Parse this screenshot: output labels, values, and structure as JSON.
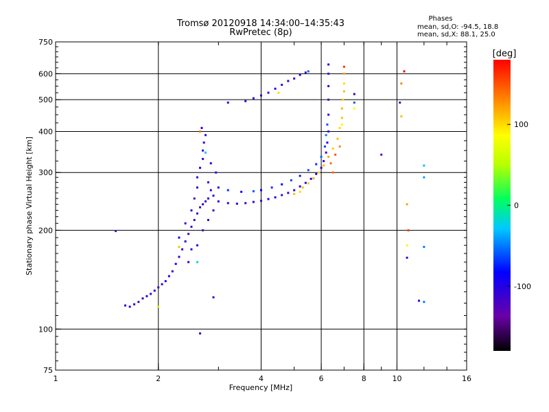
{
  "chart_data": {
    "type": "scatter",
    "title": "Tromsø 20120918 14:34:00–14:35:43",
    "subtitle": "RwPretec (8p)",
    "stats": {
      "heading": "Phases",
      "line_o": "mean, sd,O: -94.5, 18.8",
      "line_x": "mean, sd,X:  88.1, 25.0"
    },
    "xlabel": "Frequency [MHz]",
    "ylabel": "Stationary phase Virtual Height [km]",
    "x_scale": "log",
    "y_scale": "log",
    "xlim": [
      1,
      16
    ],
    "ylim": [
      75,
      750
    ],
    "x_ticks": [
      1,
      2,
      4,
      6,
      8,
      10,
      16
    ],
    "x_tick_labels": [
      "1",
      "2",
      "4",
      "6",
      "8",
      "10",
      "16"
    ],
    "y_ticks": [
      75,
      100,
      200,
      300,
      400,
      500,
      600,
      750
    ],
    "y_tick_labels": [
      "75",
      "100",
      "200",
      "300",
      "400",
      "500",
      "600",
      "750"
    ],
    "grid_x": [
      2,
      4,
      6,
      8,
      10
    ],
    "grid_y": [
      100,
      200,
      300,
      400,
      500,
      600
    ],
    "grid": true,
    "colorbar": {
      "label": "[deg]",
      "range": [
        -180,
        180
      ],
      "ticks": [
        100,
        0,
        -100
      ],
      "tick_labels": [
        "100",
        "0",
        "-100"
      ],
      "colormap": "rainbow"
    },
    "series": [
      {
        "points": [
          [
            1.6,
            118,
            -105
          ],
          [
            1.65,
            117,
            -110
          ],
          [
            1.7,
            119,
            -100
          ],
          [
            1.75,
            121,
            -115
          ],
          [
            1.8,
            124,
            -108
          ],
          [
            1.85,
            126,
            -102
          ],
          [
            1.9,
            128,
            -112
          ],
          [
            1.95,
            131,
            -106
          ],
          [
            2.0,
            134,
            -118
          ],
          [
            2.05,
            137,
            -100
          ],
          [
            2.1,
            140,
            -110
          ],
          [
            2.15,
            145,
            -104
          ],
          [
            2.2,
            150,
            -112
          ],
          [
            2.25,
            158,
            -106
          ],
          [
            2.3,
            166,
            -114
          ],
          [
            2.35,
            175,
            -100
          ],
          [
            2.4,
            185,
            -110
          ],
          [
            2.45,
            195,
            -116
          ],
          [
            2.5,
            205,
            -104
          ],
          [
            2.55,
            215,
            -112
          ],
          [
            2.6,
            225,
            -106
          ],
          [
            2.65,
            235,
            -118
          ],
          [
            2.7,
            240,
            -100
          ],
          [
            2.75,
            245,
            -110
          ],
          [
            2.8,
            250,
            -104
          ],
          [
            2.3,
            190,
            -95
          ],
          [
            2.4,
            210,
            -120
          ],
          [
            2.5,
            230,
            -98
          ],
          [
            2.55,
            250,
            -115
          ],
          [
            2.6,
            270,
            -102
          ],
          [
            2.6,
            290,
            -110
          ],
          [
            2.65,
            310,
            -96
          ],
          [
            2.7,
            330,
            -112
          ],
          [
            2.7,
            350,
            -104
          ],
          [
            2.72,
            370,
            -100
          ],
          [
            2.75,
            390,
            -108
          ],
          [
            2.68,
            410,
            -90
          ],
          [
            2.8,
            280,
            -115
          ],
          [
            2.85,
            265,
            -104
          ],
          [
            2.9,
            255,
            -110
          ],
          [
            2.45,
            160,
            -112
          ],
          [
            2.5,
            175,
            -104
          ],
          [
            2.6,
            180,
            -100
          ],
          [
            2.7,
            200,
            -116
          ],
          [
            2.8,
            215,
            -106
          ],
          [
            2.9,
            230,
            -110
          ],
          [
            2.95,
            300,
            -112
          ],
          [
            2.85,
            320,
            -100
          ],
          [
            2.6,
            160,
            -20
          ],
          [
            2.75,
            345,
            -30
          ],
          [
            2.3,
            178,
            110
          ],
          [
            2.65,
            400,
            140
          ],
          [
            2.0,
            117,
            60
          ],
          [
            2.65,
            97,
            -110
          ],
          [
            2.9,
            125,
            -112
          ],
          [
            3.0,
            245,
            -100
          ],
          [
            3.2,
            242,
            -112
          ],
          [
            3.4,
            241,
            -106
          ],
          [
            3.6,
            242,
            -110
          ],
          [
            3.8,
            244,
            -104
          ],
          [
            4.0,
            246,
            -112
          ],
          [
            4.2,
            249,
            -100
          ],
          [
            4.4,
            252,
            -108
          ],
          [
            4.6,
            256,
            -114
          ],
          [
            4.8,
            260,
            -102
          ],
          [
            5.0,
            265,
            -110
          ],
          [
            5.2,
            272,
            -106
          ],
          [
            5.4,
            279,
            -112
          ],
          [
            5.6,
            287,
            -100
          ],
          [
            5.8,
            297,
            -108
          ],
          [
            6.0,
            310,
            -112
          ],
          [
            6.1,
            325,
            -104
          ],
          [
            6.2,
            345,
            -110
          ],
          [
            6.25,
            370,
            -100
          ],
          [
            6.3,
            400,
            -112
          ],
          [
            6.3,
            450,
            -106
          ],
          [
            6.3,
            500,
            -110
          ],
          [
            6.3,
            550,
            -104
          ],
          [
            6.3,
            600,
            -112
          ],
          [
            6.3,
            640,
            -100
          ],
          [
            3.0,
            270,
            -80
          ],
          [
            3.2,
            265,
            -70
          ],
          [
            3.5,
            262,
            -90
          ],
          [
            3.8,
            263,
            -60
          ],
          [
            4.0,
            265,
            -85
          ],
          [
            4.3,
            270,
            -70
          ],
          [
            4.6,
            276,
            -80
          ],
          [
            4.9,
            284,
            -65
          ],
          [
            5.2,
            293,
            -75
          ],
          [
            5.5,
            305,
            -60
          ],
          [
            5.8,
            318,
            -70
          ],
          [
            6.0,
            335,
            -55
          ],
          [
            6.15,
            360,
            -65
          ],
          [
            6.2,
            390,
            -50
          ],
          [
            6.25,
            420,
            -60
          ],
          [
            5.3,
            270,
            110
          ],
          [
            5.5,
            278,
            105
          ],
          [
            5.7,
            288,
            115
          ],
          [
            5.9,
            300,
            100
          ],
          [
            6.1,
            315,
            110
          ],
          [
            6.3,
            335,
            120
          ],
          [
            6.5,
            355,
            105
          ],
          [
            6.7,
            380,
            112
          ],
          [
            6.8,
            410,
            100
          ],
          [
            6.9,
            440,
            110
          ],
          [
            6.9,
            470,
            115
          ],
          [
            6.95,
            500,
            105
          ],
          [
            7.0,
            530,
            112
          ],
          [
            7.0,
            560,
            100
          ],
          [
            7.0,
            600,
            120
          ],
          [
            5.0,
            258,
            110
          ],
          [
            5.2,
            262,
            100
          ],
          [
            6.4,
            320,
            140
          ],
          [
            6.6,
            340,
            150
          ],
          [
            6.8,
            360,
            130
          ],
          [
            6.5,
            300,
            140
          ],
          [
            6.9,
            420,
            90
          ],
          [
            7.0,
            630,
            160
          ],
          [
            3.6,
            495,
            -110
          ],
          [
            3.8,
            505,
            -112
          ],
          [
            4.0,
            515,
            -104
          ],
          [
            4.2,
            525,
            -110
          ],
          [
            4.4,
            540,
            -100
          ],
          [
            4.6,
            555,
            -112
          ],
          [
            4.8,
            570,
            -106
          ],
          [
            5.0,
            580,
            -110
          ],
          [
            5.2,
            595,
            -104
          ],
          [
            5.4,
            605,
            -112
          ],
          [
            5.5,
            610,
            -60
          ],
          [
            3.2,
            490,
            -110
          ],
          [
            4.5,
            525,
            100
          ],
          [
            7.5,
            520,
            -100
          ],
          [
            7.5,
            490,
            -60
          ],
          [
            7.5,
            470,
            80
          ],
          [
            9.0,
            340,
            -130
          ],
          [
            10.5,
            610,
            180
          ],
          [
            10.3,
            560,
            130
          ],
          [
            10.2,
            490,
            -110
          ],
          [
            10.3,
            445,
            110
          ],
          [
            10.7,
            240,
            120
          ],
          [
            10.8,
            200,
            160
          ],
          [
            10.7,
            180,
            90
          ],
          [
            10.7,
            165,
            -110
          ],
          [
            12.0,
            315,
            -30
          ],
          [
            12.0,
            290,
            -40
          ],
          [
            12.0,
            178,
            -50
          ],
          [
            11.6,
            122,
            -110
          ],
          [
            12.0,
            121,
            -50
          ],
          [
            1.5,
            199,
            -120
          ]
        ]
      }
    ]
  }
}
